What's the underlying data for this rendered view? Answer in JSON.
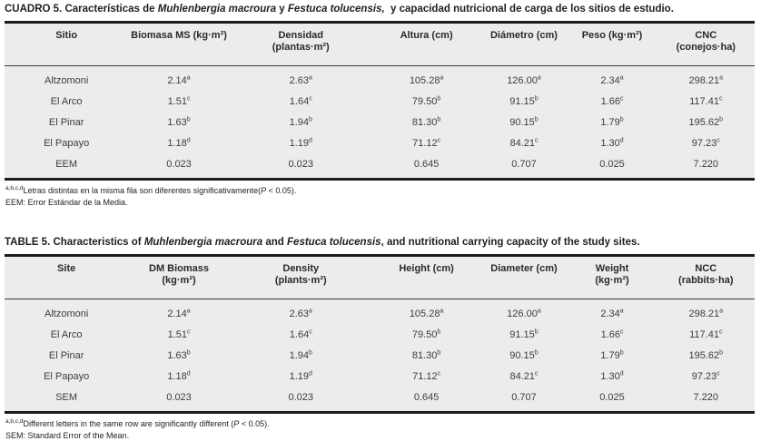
{
  "colors": {
    "table_background": "#ececec",
    "border": "#1c1c1c",
    "text": "#3d3d3d"
  },
  "tables": [
    {
      "id": "cuadro-5-es",
      "title_segments": [
        {
          "t": "CUADRO 5. Características de "
        },
        {
          "t": "Muhlenbergia macroura",
          "i": true
        },
        {
          "t": " y "
        },
        {
          "t": "Festuca tolucensis,",
          "i": true
        },
        {
          "t": "  y capacidad nutricional de carga de los sitios de estudio."
        }
      ],
      "columns": [
        {
          "lines": [
            "Sitio"
          ]
        },
        {
          "lines": [
            "Biomasa MS (kg·m²)"
          ]
        },
        {
          "lines": [
            "Densidad",
            "(plantas·m²)"
          ]
        },
        {
          "lines": [
            "Altura (cm)"
          ]
        },
        {
          "lines": [
            "Diámetro (cm)"
          ]
        },
        {
          "lines": [
            "Peso (kg·m²)"
          ]
        },
        {
          "lines": [
            "CNC",
            "(conejos·ha)"
          ]
        }
      ],
      "rows": [
        {
          "label": "Altzomoni",
          "cells": [
            {
              "v": "2.14",
              "s": "a"
            },
            {
              "v": "2.63",
              "s": "a"
            },
            {
              "v": "105.28",
              "s": "a"
            },
            {
              "v": "126.00",
              "s": "a"
            },
            {
              "v": "2.34",
              "s": "a"
            },
            {
              "v": "298.21",
              "s": "a"
            }
          ]
        },
        {
          "label": "El Arco",
          "cells": [
            {
              "v": "1.51",
              "s": "c"
            },
            {
              "v": "1.64",
              "s": "c"
            },
            {
              "v": "79.50",
              "s": "b"
            },
            {
              "v": "91.15",
              "s": "b"
            },
            {
              "v": "1.66",
              "s": "c"
            },
            {
              "v": "117.41",
              "s": "c"
            }
          ]
        },
        {
          "label": "El Pinar",
          "cells": [
            {
              "v": "1.63",
              "s": "b"
            },
            {
              "v": "1.94",
              "s": "b"
            },
            {
              "v": "81.30",
              "s": "b"
            },
            {
              "v": "90.15",
              "s": "b"
            },
            {
              "v": "1.79",
              "s": "b"
            },
            {
              "v": "195.62",
              "s": "b"
            }
          ]
        },
        {
          "label": "El Papayo",
          "cells": [
            {
              "v": "1.18",
              "s": "d"
            },
            {
              "v": "1.19",
              "s": "d"
            },
            {
              "v": "71.12",
              "s": "c"
            },
            {
              "v": "84.21",
              "s": "c"
            },
            {
              "v": "1.30",
              "s": "d"
            },
            {
              "v": "97.23",
              "s": "c"
            }
          ]
        },
        {
          "label": "EEM",
          "cells": [
            {
              "v": "0.023"
            },
            {
              "v": "0.023"
            },
            {
              "v": "0.645"
            },
            {
              "v": "0.707"
            },
            {
              "v": "0.025"
            },
            {
              "v": "7.220"
            }
          ]
        }
      ],
      "footnotes": [
        [
          {
            "t": "a,b,c,d",
            "sup": true
          },
          {
            "t": "Letras distintas en la misma fila son diferentes significativamente("
          },
          {
            "t": "P",
            "i": true
          },
          {
            "t": " < 0.05)."
          }
        ],
        [
          {
            "t": "EEM: Error Estándar de la Media."
          }
        ]
      ]
    },
    {
      "id": "table-5-en",
      "title_segments": [
        {
          "t": "TABLE 5. Characteristics of "
        },
        {
          "t": "Muhlenbergia macroura",
          "i": true
        },
        {
          "t": " and "
        },
        {
          "t": "Festuca tolucensis",
          "i": true
        },
        {
          "t": ", and nutritional carrying capacity of the study sites."
        }
      ],
      "columns": [
        {
          "lines": [
            "Site"
          ]
        },
        {
          "lines": [
            "DM Biomass",
            "(kg·m²)"
          ]
        },
        {
          "lines": [
            "Density",
            "(plants·m²)"
          ]
        },
        {
          "lines": [
            "Height (cm)"
          ]
        },
        {
          "lines": [
            "Diameter (cm)"
          ]
        },
        {
          "lines": [
            "Weight",
            "(kg·m²)"
          ]
        },
        {
          "lines": [
            "NCC",
            "(rabbits·ha)"
          ]
        }
      ],
      "rows": [
        {
          "label": "Altzomoni",
          "cells": [
            {
              "v": "2.14",
              "s": "a"
            },
            {
              "v": "2.63",
              "s": "a"
            },
            {
              "v": "105.28",
              "s": "a"
            },
            {
              "v": "126.00",
              "s": "a"
            },
            {
              "v": "2.34",
              "s": "a"
            },
            {
              "v": "298.21",
              "s": "a"
            }
          ]
        },
        {
          "label": "El Arco",
          "cells": [
            {
              "v": "1.51",
              "s": "c"
            },
            {
              "v": "1.64",
              "s": "c"
            },
            {
              "v": "79.50",
              "s": "b"
            },
            {
              "v": "91.15",
              "s": "b"
            },
            {
              "v": "1.66",
              "s": "c"
            },
            {
              "v": "117.41",
              "s": "c"
            }
          ]
        },
        {
          "label": "El Pinar",
          "cells": [
            {
              "v": "1.63",
              "s": "b"
            },
            {
              "v": "1.94",
              "s": "b"
            },
            {
              "v": "81.30",
              "s": "b"
            },
            {
              "v": "90.15",
              "s": "b"
            },
            {
              "v": "1.79",
              "s": "b"
            },
            {
              "v": "195.62",
              "s": "b"
            }
          ]
        },
        {
          "label": "El Papayo",
          "cells": [
            {
              "v": "1.18",
              "s": "d"
            },
            {
              "v": "1.19",
              "s": "d"
            },
            {
              "v": "71.12",
              "s": "c"
            },
            {
              "v": "84.21",
              "s": "c"
            },
            {
              "v": "1.30",
              "s": "d"
            },
            {
              "v": "97.23",
              "s": "c"
            }
          ]
        },
        {
          "label": "SEM",
          "cells": [
            {
              "v": "0.023"
            },
            {
              "v": "0.023"
            },
            {
              "v": "0.645"
            },
            {
              "v": "0.707"
            },
            {
              "v": "0.025"
            },
            {
              "v": "7.220"
            }
          ]
        }
      ],
      "footnotes": [
        [
          {
            "t": "a,b,c,d",
            "sup": true
          },
          {
            "t": "Different letters in the same row are significantly different ("
          },
          {
            "t": "P",
            "i": true
          },
          {
            "t": " < 0.05)."
          }
        ],
        [
          {
            "t": "SEM: Standard Error of the Mean."
          }
        ]
      ]
    }
  ]
}
